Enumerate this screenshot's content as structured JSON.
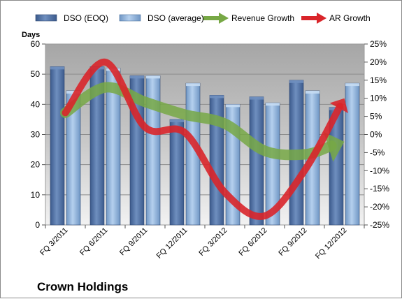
{
  "chart_data": {
    "type": "bar",
    "title": "Crown Holdings",
    "left_axis_title": "Days",
    "categories": [
      "FQ 3/2011",
      "FQ 6/2011",
      "FQ 9/2011",
      "FQ 12/2011",
      "FQ 3/2012",
      "FQ 6/2012",
      "FQ 9/2012",
      "FQ 12/2012"
    ],
    "bar_series": [
      {
        "name": "DSO (EOQ)",
        "values": [
          52.5,
          52.5,
          49.5,
          35,
          43,
          42.5,
          48,
          39
        ]
      },
      {
        "name": "DSO (average)",
        "values": [
          44.5,
          52,
          49.5,
          47,
          40,
          40.5,
          44.5,
          47
        ]
      }
    ],
    "line_series": [
      {
        "name": "Revenue Growth",
        "values": [
          6,
          13,
          9,
          5.5,
          3,
          -4.5,
          -5.5,
          -2
        ]
      },
      {
        "name": "AR Growth",
        "values": [
          6,
          20,
          2,
          0.5,
          -16,
          -22.5,
          -10,
          10
        ]
      }
    ],
    "left_axis": {
      "min": 0,
      "max": 60,
      "step": 10
    },
    "right_axis": {
      "min": -25,
      "max": 25,
      "step": 5,
      "suffix": "%"
    },
    "grid": true,
    "legend_position": "top",
    "colors": {
      "dso_eoq": "#4f6fa0",
      "dso_avg": "#8fb3d9",
      "revenue_growth": "#77a845",
      "ar_growth": "#d9252a"
    }
  }
}
